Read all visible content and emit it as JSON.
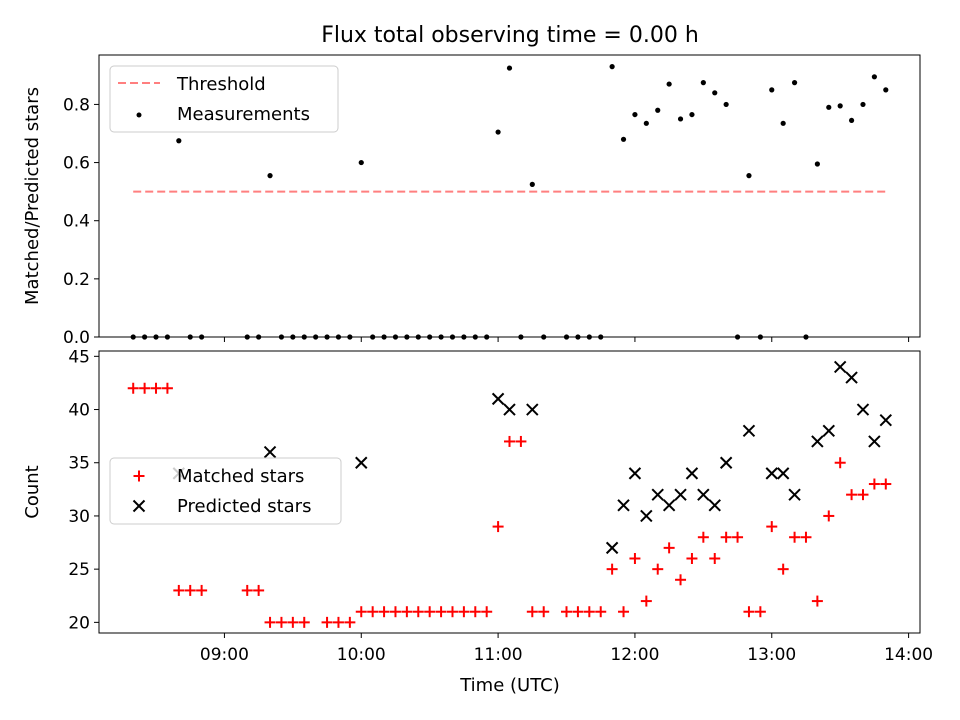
{
  "chart_data": [
    {
      "type": "scatter",
      "title": "Flux total observing time = 0.00 h",
      "xlabel": "",
      "ylabel": "Matched/Predicted stars",
      "ylim": [
        0,
        0.97
      ],
      "yticks": [
        "0.0",
        "0.2",
        "0.4",
        "0.6",
        "0.8"
      ],
      "legend_position": "top-left",
      "threshold": {
        "name": "Threshold",
        "value": 0.5,
        "x_start": "08:20",
        "x_end": "13:50",
        "color": "#ff7f7f",
        "style": "dashed"
      },
      "series": [
        {
          "name": "Measurements",
          "color": "#000000",
          "marker": "dot",
          "points": [
            {
              "x": "08:20",
              "y": 0.0
            },
            {
              "x": "08:25",
              "y": 0.0
            },
            {
              "x": "08:30",
              "y": 0.0
            },
            {
              "x": "08:35",
              "y": 0.0
            },
            {
              "x": "08:40",
              "y": 0.675
            },
            {
              "x": "08:45",
              "y": 0.0
            },
            {
              "x": "08:50",
              "y": 0.0
            },
            {
              "x": "09:10",
              "y": 0.0
            },
            {
              "x": "09:15",
              "y": 0.0
            },
            {
              "x": "09:20",
              "y": 0.555
            },
            {
              "x": "09:25",
              "y": 0.0
            },
            {
              "x": "09:30",
              "y": 0.0
            },
            {
              "x": "09:35",
              "y": 0.0
            },
            {
              "x": "09:40",
              "y": 0.0
            },
            {
              "x": "09:45",
              "y": 0.0
            },
            {
              "x": "09:50",
              "y": 0.0
            },
            {
              "x": "09:55",
              "y": 0.0
            },
            {
              "x": "10:00",
              "y": 0.6
            },
            {
              "x": "10:05",
              "y": 0.0
            },
            {
              "x": "10:10",
              "y": 0.0
            },
            {
              "x": "10:15",
              "y": 0.0
            },
            {
              "x": "10:20",
              "y": 0.0
            },
            {
              "x": "10:25",
              "y": 0.0
            },
            {
              "x": "10:30",
              "y": 0.0
            },
            {
              "x": "10:35",
              "y": 0.0
            },
            {
              "x": "10:40",
              "y": 0.0
            },
            {
              "x": "10:45",
              "y": 0.0
            },
            {
              "x": "10:50",
              "y": 0.0
            },
            {
              "x": "10:55",
              "y": 0.0
            },
            {
              "x": "11:00",
              "y": 0.705
            },
            {
              "x": "11:05",
              "y": 0.925
            },
            {
              "x": "11:10",
              "y": 0.0
            },
            {
              "x": "11:15",
              "y": 0.525
            },
            {
              "x": "11:20",
              "y": 0.0
            },
            {
              "x": "11:30",
              "y": 0.0
            },
            {
              "x": "11:35",
              "y": 0.0
            },
            {
              "x": "11:40",
              "y": 0.0
            },
            {
              "x": "11:45",
              "y": 0.0
            },
            {
              "x": "11:50",
              "y": 0.93
            },
            {
              "x": "11:55",
              "y": 0.68
            },
            {
              "x": "12:00",
              "y": 0.765
            },
            {
              "x": "12:05",
              "y": 0.735
            },
            {
              "x": "12:10",
              "y": 0.78
            },
            {
              "x": "12:15",
              "y": 0.87
            },
            {
              "x": "12:20",
              "y": 0.75
            },
            {
              "x": "12:25",
              "y": 0.765
            },
            {
              "x": "12:30",
              "y": 0.875
            },
            {
              "x": "12:35",
              "y": 0.84
            },
            {
              "x": "12:40",
              "y": 0.8
            },
            {
              "x": "12:45",
              "y": 0.0
            },
            {
              "x": "12:50",
              "y": 0.555
            },
            {
              "x": "12:55",
              "y": 0.0
            },
            {
              "x": "13:00",
              "y": 0.85
            },
            {
              "x": "13:05",
              "y": 0.735
            },
            {
              "x": "13:10",
              "y": 0.875
            },
            {
              "x": "13:15",
              "y": 0.0
            },
            {
              "x": "13:20",
              "y": 0.595
            },
            {
              "x": "13:25",
              "y": 0.79
            },
            {
              "x": "13:30",
              "y": 0.795
            },
            {
              "x": "13:35",
              "y": 0.745
            },
            {
              "x": "13:40",
              "y": 0.8
            },
            {
              "x": "13:45",
              "y": 0.895
            },
            {
              "x": "13:50",
              "y": 0.85
            }
          ]
        }
      ]
    },
    {
      "type": "scatter",
      "title": "",
      "xlabel": "Time (UTC)",
      "ylabel": "Count",
      "xlim": [
        "08:05",
        "14:05"
      ],
      "xticks": [
        "09:00",
        "10:00",
        "11:00",
        "12:00",
        "13:00",
        "14:00"
      ],
      "ylim": [
        19,
        45.5
      ],
      "yticks": [
        "20",
        "25",
        "30",
        "35",
        "40",
        "45"
      ],
      "legend_position": "center-left",
      "series": [
        {
          "name": "Matched stars",
          "color": "#ff0000",
          "marker": "plus",
          "points": [
            {
              "x": "08:20",
              "y": 42
            },
            {
              "x": "08:25",
              "y": 42
            },
            {
              "x": "08:30",
              "y": 42
            },
            {
              "x": "08:35",
              "y": 42
            },
            {
              "x": "08:40",
              "y": 23
            },
            {
              "x": "08:45",
              "y": 23
            },
            {
              "x": "08:50",
              "y": 23
            },
            {
              "x": "09:10",
              "y": 23
            },
            {
              "x": "09:15",
              "y": 23
            },
            {
              "x": "09:20",
              "y": 20
            },
            {
              "x": "09:25",
              "y": 20
            },
            {
              "x": "09:30",
              "y": 20
            },
            {
              "x": "09:35",
              "y": 20
            },
            {
              "x": "09:45",
              "y": 20
            },
            {
              "x": "09:50",
              "y": 20
            },
            {
              "x": "09:55",
              "y": 20
            },
            {
              "x": "10:00",
              "y": 21
            },
            {
              "x": "10:05",
              "y": 21
            },
            {
              "x": "10:10",
              "y": 21
            },
            {
              "x": "10:15",
              "y": 21
            },
            {
              "x": "10:20",
              "y": 21
            },
            {
              "x": "10:25",
              "y": 21
            },
            {
              "x": "10:30",
              "y": 21
            },
            {
              "x": "10:35",
              "y": 21
            },
            {
              "x": "10:40",
              "y": 21
            },
            {
              "x": "10:45",
              "y": 21
            },
            {
              "x": "10:50",
              "y": 21
            },
            {
              "x": "10:55",
              "y": 21
            },
            {
              "x": "11:00",
              "y": 29
            },
            {
              "x": "11:05",
              "y": 37
            },
            {
              "x": "11:10",
              "y": 37
            },
            {
              "x": "11:15",
              "y": 21
            },
            {
              "x": "11:20",
              "y": 21
            },
            {
              "x": "11:30",
              "y": 21
            },
            {
              "x": "11:35",
              "y": 21
            },
            {
              "x": "11:40",
              "y": 21
            },
            {
              "x": "11:45",
              "y": 21
            },
            {
              "x": "11:50",
              "y": 25
            },
            {
              "x": "11:55",
              "y": 21
            },
            {
              "x": "12:00",
              "y": 26
            },
            {
              "x": "12:05",
              "y": 22
            },
            {
              "x": "12:10",
              "y": 25
            },
            {
              "x": "12:15",
              "y": 27
            },
            {
              "x": "12:20",
              "y": 24
            },
            {
              "x": "12:25",
              "y": 26
            },
            {
              "x": "12:30",
              "y": 28
            },
            {
              "x": "12:35",
              "y": 26
            },
            {
              "x": "12:40",
              "y": 28
            },
            {
              "x": "12:45",
              "y": 28
            },
            {
              "x": "12:50",
              "y": 21
            },
            {
              "x": "12:55",
              "y": 21
            },
            {
              "x": "13:00",
              "y": 29
            },
            {
              "x": "13:05",
              "y": 25
            },
            {
              "x": "13:10",
              "y": 28
            },
            {
              "x": "13:15",
              "y": 28
            },
            {
              "x": "13:20",
              "y": 22
            },
            {
              "x": "13:25",
              "y": 30
            },
            {
              "x": "13:30",
              "y": 35
            },
            {
              "x": "13:35",
              "y": 32
            },
            {
              "x": "13:40",
              "y": 32
            },
            {
              "x": "13:45",
              "y": 33
            },
            {
              "x": "13:50",
              "y": 33
            }
          ]
        },
        {
          "name": "Predicted stars",
          "color": "#000000",
          "marker": "x",
          "points": [
            {
              "x": "08:40",
              "y": 34
            },
            {
              "x": "09:20",
              "y": 36
            },
            {
              "x": "10:00",
              "y": 35
            },
            {
              "x": "11:00",
              "y": 41
            },
            {
              "x": "11:05",
              "y": 40
            },
            {
              "x": "11:15",
              "y": 40
            },
            {
              "x": "11:50",
              "y": 27
            },
            {
              "x": "11:55",
              "y": 31
            },
            {
              "x": "12:00",
              "y": 34
            },
            {
              "x": "12:05",
              "y": 30
            },
            {
              "x": "12:10",
              "y": 32
            },
            {
              "x": "12:15",
              "y": 31
            },
            {
              "x": "12:20",
              "y": 32
            },
            {
              "x": "12:25",
              "y": 34
            },
            {
              "x": "12:30",
              "y": 32
            },
            {
              "x": "12:35",
              "y": 31
            },
            {
              "x": "12:40",
              "y": 35
            },
            {
              "x": "12:50",
              "y": 38
            },
            {
              "x": "13:00",
              "y": 34
            },
            {
              "x": "13:05",
              "y": 34
            },
            {
              "x": "13:10",
              "y": 32
            },
            {
              "x": "13:20",
              "y": 37
            },
            {
              "x": "13:25",
              "y": 38
            },
            {
              "x": "13:30",
              "y": 44
            },
            {
              "x": "13:35",
              "y": 43
            },
            {
              "x": "13:40",
              "y": 40
            },
            {
              "x": "13:45",
              "y": 37
            },
            {
              "x": "13:50",
              "y": 39
            }
          ]
        }
      ]
    }
  ]
}
